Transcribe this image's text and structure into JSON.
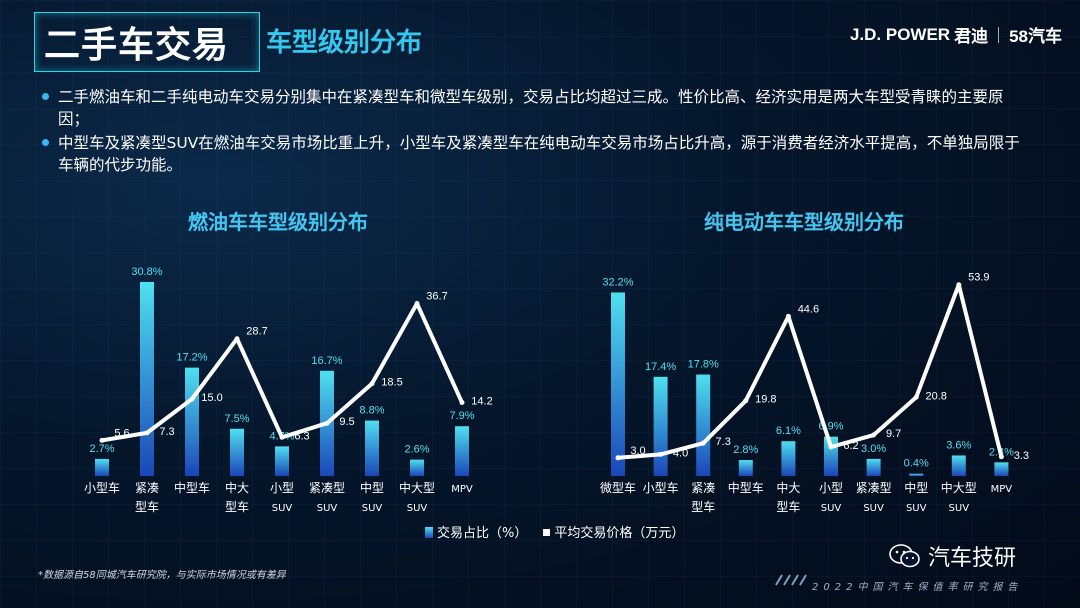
{
  "header": {
    "title": "二手车交易",
    "subtitle": "车型级别分布",
    "brand_jd": "J.D. POWER",
    "brand_jundi": "君迪",
    "brand_58": "58汽车"
  },
  "bullets": [
    "二手燃油车和二手纯电动车交易分别集中在紧凑型车和微型车级别，交易占比均超过三成。性价比高、经济实用是两大车型受青睐的主要原因；",
    "中型车及紧凑型SUV在燃油车交易市场比重上升，小型车及紧凑型车在纯电动车交易市场占比升高，源于消费者经济水平提高，不单独局限于车辆的代步功能。"
  ],
  "legend": {
    "bar_label": "交易占比（%）",
    "line_label": "平均交易价格（万元）"
  },
  "colors": {
    "bar_top": "#4fe0f0",
    "bar_bottom": "#1a46b8",
    "line": "#ffffff",
    "bar_label": "#4fe0f0",
    "accent": "#34c8f0"
  },
  "chart_data": [
    {
      "type": "bar",
      "title": "燃油车车型级别分布",
      "categories": [
        [
          "小型车"
        ],
        [
          "紧凑",
          "型车"
        ],
        [
          "中型车"
        ],
        [
          "中大",
          "型车"
        ],
        [
          "小型",
          "SUV"
        ],
        [
          "紧凑型",
          "SUV"
        ],
        [
          "中型",
          "SUV"
        ],
        [
          "中大型",
          "SUV"
        ],
        [
          "MPV"
        ]
      ],
      "series": [
        {
          "name": "交易占比（%）",
          "type": "bar",
          "values": [
            2.7,
            30.8,
            17.2,
            7.5,
            4.7,
            16.7,
            8.8,
            2.6,
            7.9
          ],
          "labels": [
            "2.7%",
            "30.8%",
            "17.2%",
            "7.5%",
            "4.7%",
            "16.7%",
            "8.8%",
            "2.6%",
            "7.9%"
          ]
        },
        {
          "name": "平均交易价格（万元）",
          "type": "line",
          "values": [
            5.6,
            7.3,
            15.0,
            28.7,
            6.3,
            9.5,
            18.5,
            36.7,
            14.2
          ],
          "labels": [
            "5.6",
            "7.3",
            "15.0",
            "28.7",
            "6.3",
            "9.5",
            "18.5",
            "36.7",
            "14.2"
          ]
        }
      ]
    },
    {
      "type": "bar",
      "title": "纯电动车车型级别分布",
      "categories": [
        [
          "微型车"
        ],
        [
          "小型车"
        ],
        [
          "紧凑",
          "型车"
        ],
        [
          "中型车"
        ],
        [
          "中大",
          "型车"
        ],
        [
          "小型",
          "SUV"
        ],
        [
          "紧凑型",
          "SUV"
        ],
        [
          "中型",
          "SUV"
        ],
        [
          "中大型",
          "SUV"
        ],
        [
          "MPV"
        ]
      ],
      "series": [
        {
          "name": "交易占比（%）",
          "type": "bar",
          "values": [
            32.2,
            17.4,
            17.8,
            2.8,
            6.1,
            6.9,
            3.0,
            0.4,
            3.6,
            2.4
          ],
          "labels": [
            "32.2%",
            "17.4%",
            "17.8%",
            "2.8%",
            "6.1%",
            "6.9%",
            "3.0%",
            "0.4%",
            "3.6%",
            "2.4%"
          ]
        },
        {
          "name": "平均交易价格（万元）",
          "type": "line",
          "values": [
            3.0,
            4.0,
            7.3,
            19.8,
            44.6,
            6.2,
            9.7,
            20.8,
            53.9,
            3.3
          ],
          "labels": [
            "3.0",
            "4.0",
            "7.3",
            "19.8",
            "44.6",
            "6.2",
            "9.7",
            "20.8",
            "53.9",
            "3.3"
          ]
        }
      ]
    }
  ],
  "footnote": "*数据源自58同城汽车研究院，与实际市场情况或有差异",
  "report_name": "2022中国汽车保值率研究报告",
  "wechat_account": "汽车技研",
  "icons": {
    "wechat": "wechat-icon"
  }
}
